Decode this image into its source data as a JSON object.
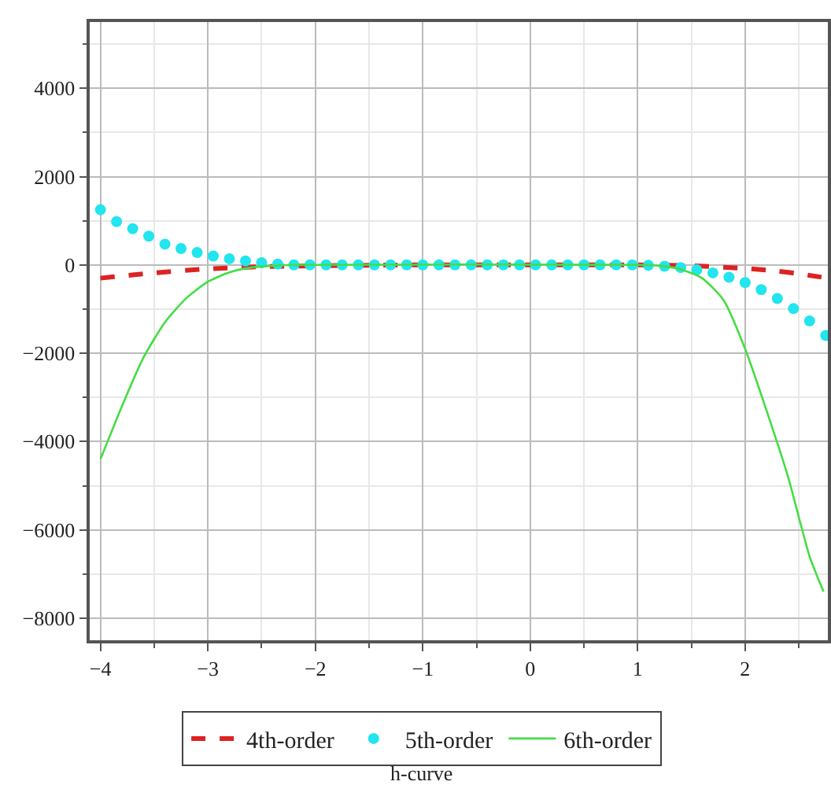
{
  "chart_data": {
    "type": "line",
    "annotations": [
      "h-curve"
    ],
    "xlim": [
      -4.1,
      2.77
    ],
    "ylim": [
      -8500,
      5500
    ],
    "xticks": [
      -4,
      {
        "value": -3.5,
        "label": null
      },
      -3,
      {
        "value": -2.5,
        "label": null
      },
      -2,
      {
        "value": -1.5,
        "label": null
      },
      -1,
      {
        "value": -0.5,
        "label": null
      },
      0,
      {
        "value": 0.5,
        "label": null
      },
      1,
      {
        "value": 1.5,
        "label": null
      },
      2,
      {
        "value": 2.5,
        "label": null
      }
    ],
    "yticks": [
      {
        "value": -8000,
        "label": "−8000"
      },
      {
        "value": -7000,
        "label": null
      },
      {
        "value": -6000,
        "label": "−6000"
      },
      {
        "value": -5000,
        "label": null
      },
      {
        "value": -4000,
        "label": "−4000"
      },
      {
        "value": -3000,
        "label": null
      },
      {
        "value": -2000,
        "label": "−2000"
      },
      {
        "value": -1000,
        "label": null
      },
      0,
      {
        "value": 1000,
        "label": null
      },
      2000,
      {
        "value": 3000,
        "label": null
      },
      4000,
      {
        "value": 5000,
        "label": null
      }
    ],
    "grid": true,
    "legend": "bottom",
    "series": [
      {
        "name": "4th-order",
        "color": "#dd2222",
        "line_style": "dashed",
        "x": [
          -4,
          -3.5,
          -3,
          -2.5,
          -2,
          -1,
          0,
          1,
          1.5,
          2,
          2.3,
          2.5,
          2.77
        ],
        "values": [
          -300,
          -180,
          -90,
          -40,
          -20,
          0,
          0,
          0,
          -20,
          -80,
          -140,
          -200,
          -300
        ]
      },
      {
        "name": "5th-order",
        "color": "#22e5ee",
        "type": "scatter",
        "marker": "circle",
        "x": [
          -4,
          -3.85,
          -3.7,
          -3.55,
          -3.4,
          -3.25,
          -3.1,
          -2.95,
          -2.8,
          -2.65,
          -2.5,
          -2.35,
          -2.2,
          -2.05,
          -1.9,
          -1.75,
          -1.6,
          -1.45,
          -1.3,
          -1.15,
          -1.0,
          -0.85,
          -0.7,
          -0.55,
          -0.4,
          -0.25,
          -0.1,
          0.05,
          0.2,
          0.35,
          0.5,
          0.65,
          0.8,
          0.95,
          1.1,
          1.25,
          1.4,
          1.55,
          1.7,
          1.85,
          2.0,
          2.15,
          2.3,
          2.45,
          2.6,
          2.75
        ],
        "values": [
          1250,
          980,
          820,
          650,
          470,
          370,
          280,
          200,
          140,
          90,
          50,
          20,
          0,
          0,
          0,
          0,
          0,
          0,
          0,
          0,
          0,
          0,
          0,
          0,
          0,
          0,
          0,
          0,
          0,
          0,
          0,
          0,
          0,
          0,
          -10,
          -30,
          -60,
          -110,
          -180,
          -280,
          -400,
          -560,
          -760,
          -990,
          -1270,
          -1600
        ]
      },
      {
        "name": "6th-order",
        "color": "#44dd44",
        "line_style": "solid",
        "x": [
          -4,
          -3.8,
          -3.6,
          -3.4,
          -3.2,
          -3.0,
          -2.8,
          -2.6,
          -2.4,
          -2.2,
          1.0,
          1.2,
          1.4,
          1.6,
          1.8,
          2.0,
          2.2,
          2.4,
          2.6,
          2.73
        ],
        "values": [
          -4400,
          -3200,
          -2100,
          -1300,
          -750,
          -380,
          -170,
          -60,
          -20,
          0,
          0,
          -20,
          -100,
          -300,
          -800,
          -1900,
          -3300,
          -4800,
          -6600,
          -7400
        ]
      }
    ]
  }
}
